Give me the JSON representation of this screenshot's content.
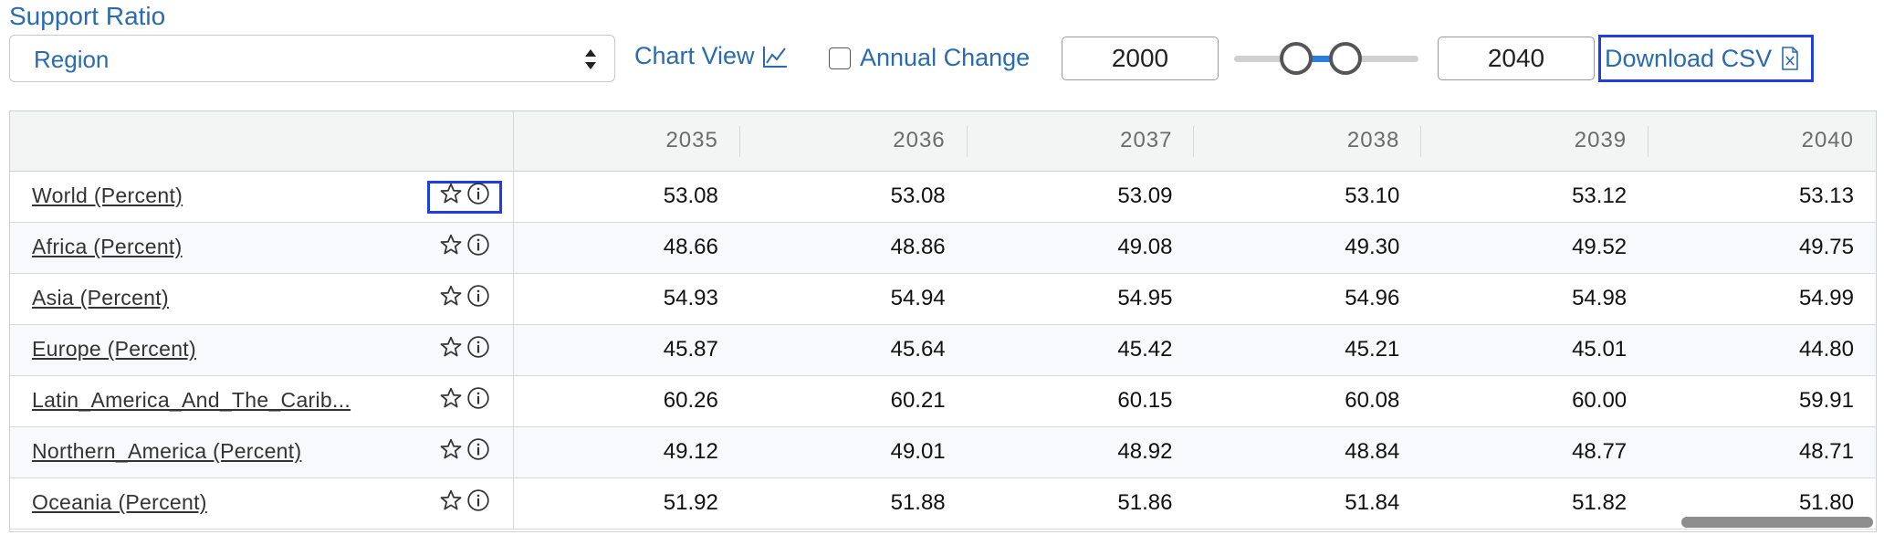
{
  "title": "Support Ratio",
  "region_select": {
    "value": "Region"
  },
  "chart_view": {
    "label": "Chart View",
    "icon": "line-chart-icon"
  },
  "annual_change": {
    "label": "Annual Change",
    "checked": false
  },
  "year_range": {
    "start": "2000",
    "end": "2040"
  },
  "download": {
    "label": "Download CSV",
    "icon": "csv-file-icon"
  },
  "table": {
    "columns": [
      "2035",
      "2036",
      "2037",
      "2038",
      "2039",
      "2040"
    ],
    "rows": [
      {
        "name": "World (Percent)",
        "values": [
          "53.08",
          "53.08",
          "53.09",
          "53.10",
          "53.12",
          "53.13"
        ]
      },
      {
        "name": "Africa (Percent)",
        "values": [
          "48.66",
          "48.86",
          "49.08",
          "49.30",
          "49.52",
          "49.75"
        ]
      },
      {
        "name": "Asia (Percent)",
        "values": [
          "54.93",
          "54.94",
          "54.95",
          "54.96",
          "54.98",
          "54.99"
        ]
      },
      {
        "name": "Europe (Percent)",
        "values": [
          "45.87",
          "45.64",
          "45.42",
          "45.21",
          "45.01",
          "44.80"
        ]
      },
      {
        "name": "Latin_America_And_The_Carib...",
        "values": [
          "60.26",
          "60.21",
          "60.15",
          "60.08",
          "60.00",
          "59.91"
        ]
      },
      {
        "name": "Northern_America (Percent)",
        "values": [
          "49.12",
          "49.01",
          "48.92",
          "48.84",
          "48.77",
          "48.71"
        ]
      },
      {
        "name": "Oceania (Percent)",
        "values": [
          "51.92",
          "51.88",
          "51.86",
          "51.84",
          "51.82",
          "51.80"
        ]
      }
    ]
  },
  "colors": {
    "accent": "#2a6bb0",
    "focus": "#1f3fe0",
    "slider_fill": "#2a7de1"
  }
}
